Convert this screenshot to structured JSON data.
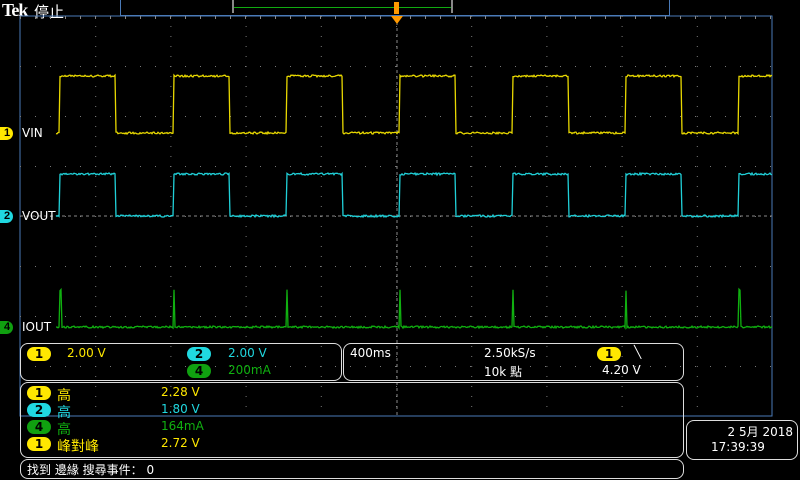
{
  "header": {
    "brand": "Tek",
    "state": "停止"
  },
  "channels": [
    {
      "num": "1",
      "label": "VIN",
      "color": "#ffe800",
      "scale": "2.00 V"
    },
    {
      "num": "2",
      "label": "VOUT",
      "color": "#20d8e0",
      "scale": "2.00 V"
    },
    {
      "num": "4",
      "label": "IOUT",
      "color": "#10b010",
      "scale": "200mA"
    }
  ],
  "acquisition": {
    "timebase": "400ms",
    "sample_rate": "2.50kS/s",
    "record_length": "10k 點"
  },
  "trigger": {
    "source": "1",
    "slope_icon": "falling-edge",
    "level": "4.20 V"
  },
  "measurements": [
    {
      "ch": "1",
      "name": "高",
      "value": "2.28 V"
    },
    {
      "ch": "2",
      "name": "高",
      "value": "1.80 V"
    },
    {
      "ch": "4",
      "name": "高",
      "value": "164mA"
    },
    {
      "ch": "1",
      "name": "峰對峰",
      "value": "2.72 V"
    }
  ],
  "status": "找到 邊緣 搜尋事件： 0",
  "datetime": {
    "date": "2 5月 2018",
    "time": "17:39:39"
  }
}
